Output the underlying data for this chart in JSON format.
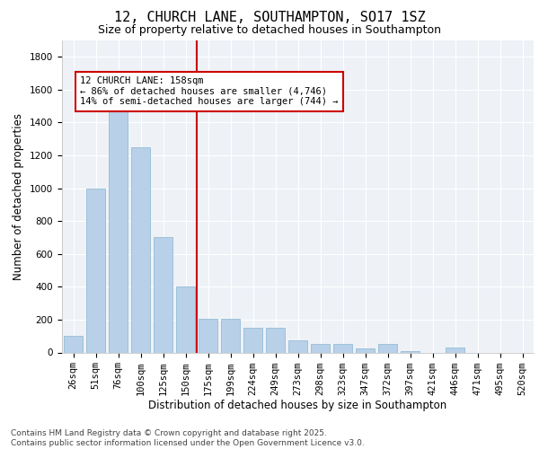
{
  "title1": "12, CHURCH LANE, SOUTHAMPTON, SO17 1SZ",
  "title2": "Size of property relative to detached houses in Southampton",
  "xlabel": "Distribution of detached houses by size in Southampton",
  "ylabel": "Number of detached properties",
  "categories": [
    "26sqm",
    "51sqm",
    "76sqm",
    "100sqm",
    "125sqm",
    "150sqm",
    "175sqm",
    "199sqm",
    "224sqm",
    "249sqm",
    "273sqm",
    "298sqm",
    "323sqm",
    "347sqm",
    "372sqm",
    "397sqm",
    "421sqm",
    "446sqm",
    "471sqm",
    "495sqm",
    "520sqm"
  ],
  "values": [
    100,
    1000,
    1500,
    1250,
    700,
    400,
    205,
    205,
    150,
    150,
    75,
    50,
    50,
    25,
    50,
    10,
    0,
    30,
    0,
    0,
    0
  ],
  "bar_color": "#b8d0e8",
  "bar_edge_color": "#8ab4d0",
  "vline_x": 5.5,
  "vline_color": "#cc0000",
  "annotation_line1": "12 CHURCH LANE: 158sqm",
  "annotation_line2": "← 86% of detached houses are smaller (4,746)",
  "annotation_line3": "14% of semi-detached houses are larger (744) →",
  "annotation_box_color": "#cc0000",
  "ylim": [
    0,
    1900
  ],
  "yticks": [
    0,
    200,
    400,
    600,
    800,
    1000,
    1200,
    1400,
    1600,
    1800
  ],
  "bg_color": "#eef2f7",
  "grid_color": "#ffffff",
  "footer1": "Contains HM Land Registry data © Crown copyright and database right 2025.",
  "footer2": "Contains public sector information licensed under the Open Government Licence v3.0.",
  "title1_fontsize": 11,
  "title2_fontsize": 9,
  "xlabel_fontsize": 8.5,
  "ylabel_fontsize": 8.5,
  "tick_fontsize": 7.5,
  "annotation_fontsize": 7.5,
  "footer_fontsize": 6.5
}
